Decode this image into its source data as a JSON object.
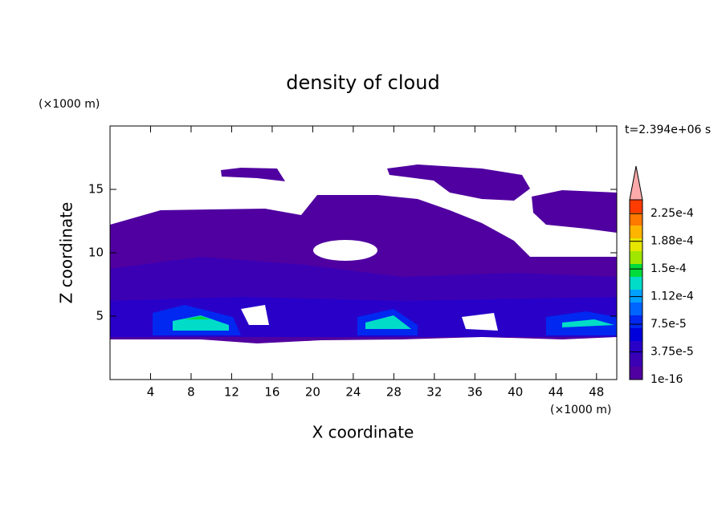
{
  "chart_data": {
    "type": "contour",
    "title": "density of cloud",
    "xlabel": "X coordinate",
    "ylabel": "Z coordinate",
    "xunit": "(×1000 m)",
    "yunit": "(×1000 m)",
    "annotation": "t=2.394e+06 s",
    "xlim": [
      0,
      50
    ],
    "xticks": [
      4,
      8,
      12,
      16,
      20,
      24,
      28,
      32,
      36,
      40,
      44,
      48
    ],
    "ylim": [
      0,
      20
    ],
    "yticks": [
      5,
      10,
      15
    ],
    "colorbar": {
      "clim": [
        1e-16,
        0.00024375
      ],
      "colors": [
        "#5000a0",
        "#3c00b4",
        "#2800c8",
        "#0000dc",
        "#0028f0",
        "#0064ff",
        "#00a0ff",
        "#00dcc8",
        "#00dc3c",
        "#a0e600",
        "#e6e600",
        "#ffb400",
        "#ff7800",
        "#ff3c00"
      ],
      "extend_color": "#ffaaaa",
      "ticks": [
        {
          "value": 1e-16,
          "label": "1e-16"
        },
        {
          "value": 3.75e-05,
          "label": "3.75e-5"
        },
        {
          "value": 7.5e-05,
          "label": "7.5e-5"
        },
        {
          "value": 0.0001125,
          "label": "1.12e-4"
        },
        {
          "value": 0.00015,
          "label": "1.5e-4"
        },
        {
          "value": 0.0001875,
          "label": "1.88e-4"
        },
        {
          "value": 0.000225,
          "label": "2.25e-4"
        }
      ]
    }
  }
}
